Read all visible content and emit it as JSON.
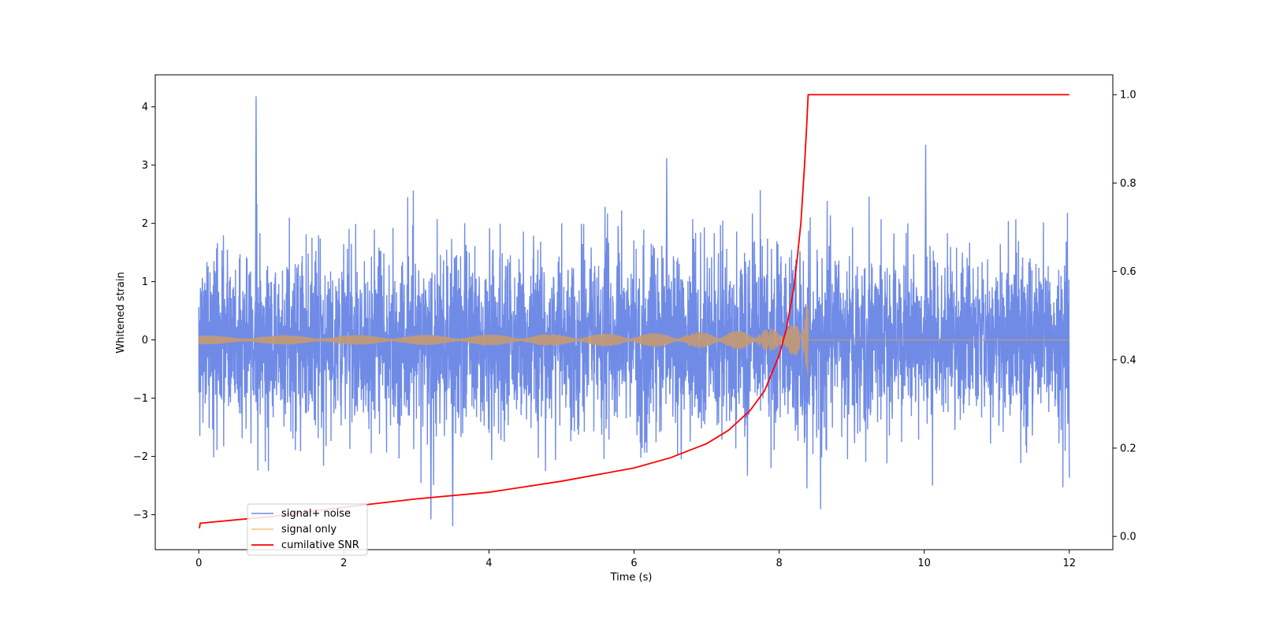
{
  "chart_data": {
    "type": "line",
    "title": "",
    "xlabel": "Time (s)",
    "ylabel": "Whitened strain",
    "y2label": "",
    "xlim": [
      -0.6,
      12.6
    ],
    "ylim": [
      -3.6,
      4.55
    ],
    "y2lim": [
      -0.03,
      1.045
    ],
    "x_ticks": [
      0,
      2,
      4,
      6,
      8,
      10,
      12
    ],
    "x_tick_labels": [
      "0",
      "2",
      "4",
      "6",
      "8",
      "10",
      "12"
    ],
    "y_ticks": [
      -3,
      -2,
      -1,
      0,
      1,
      2,
      3,
      4
    ],
    "y_tick_labels": [
      "−3",
      "−2",
      "−1",
      "0",
      "1",
      "2",
      "3",
      "4"
    ],
    "y2_ticks": [
      0.0,
      0.2,
      0.4,
      0.6,
      0.8,
      1.0
    ],
    "y2_tick_labels": [
      "0.0",
      "0.2",
      "0.4",
      "0.6",
      "0.8",
      "1.0"
    ],
    "grid": false,
    "legend_position": "lower-left",
    "series": [
      {
        "name": "signal+ noise",
        "axis": "left",
        "color": "#6f8be6",
        "description_range": [
          -3.25,
          4.18
        ],
        "x_range": [
          0,
          12
        ],
        "notable_points": [
          {
            "x": 0.79,
            "y": 4.18
          },
          {
            "x": 10.02,
            "y": 3.35
          },
          {
            "x": 6.45,
            "y": 3.12
          },
          {
            "x": 3.5,
            "y": -3.2
          },
          {
            "x": 3.2,
            "y": -3.08
          }
        ]
      },
      {
        "name": "signal only",
        "axis": "left",
        "color": "#f5c27a",
        "x_range": [
          0,
          12
        ],
        "merger_time": 8.4,
        "peak_amplitude": 0.62
      },
      {
        "name": "cumilative SNR",
        "axis": "right",
        "color": "#ff0000",
        "x": [
          0.0,
          0.01,
          0.02,
          1.0,
          2.0,
          3.0,
          4.0,
          5.0,
          6.0,
          6.5,
          7.0,
          7.3,
          7.6,
          7.8,
          8.0,
          8.1,
          8.2,
          8.25,
          8.3,
          8.35,
          8.38,
          8.4,
          9.0,
          10.0,
          11.0,
          12.0
        ],
        "values": [
          0.02,
          0.02,
          0.03,
          0.045,
          0.066,
          0.085,
          0.1,
          0.125,
          0.155,
          0.178,
          0.21,
          0.24,
          0.285,
          0.33,
          0.41,
          0.47,
          0.56,
          0.63,
          0.71,
          0.84,
          0.93,
          1.0,
          1.0,
          1.0,
          1.0,
          1.0
        ]
      }
    ]
  }
}
